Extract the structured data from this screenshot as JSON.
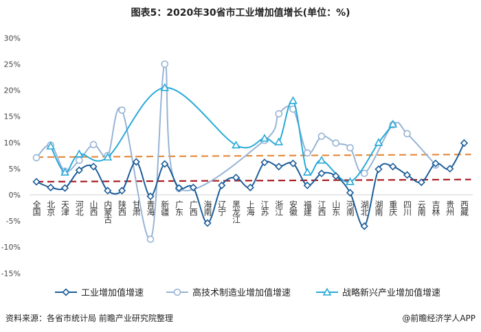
{
  "chart_data": {
    "type": "line",
    "title": "图表5：2020年30省市工业增加值增长(单位：%)",
    "categories": [
      "全国",
      "北京",
      "天津",
      "河北",
      "山西",
      "内蒙古",
      "陕西",
      "甘肃",
      "青海",
      "新疆",
      "广东",
      "广西",
      "海南",
      "辽宁",
      "黑龙江",
      "上海",
      "江苏",
      "浙江",
      "安徽",
      "福建",
      "江西",
      "山东",
      "河南",
      "湖北",
      "湖南",
      "重庆",
      "四川",
      "云南",
      "吉林",
      "贵州",
      "西藏"
    ],
    "ylim": [
      -15,
      30
    ],
    "yticks": [
      "30%",
      "25%",
      "20%",
      "15%",
      "10%",
      "5%",
      "0%",
      "-5%",
      "-10%",
      "-15%"
    ],
    "ytick_values": [
      30,
      25,
      20,
      15,
      10,
      5,
      0,
      -5,
      -10,
      -15
    ],
    "series": [
      {
        "name": "工业增加值增速",
        "color": "#1b5c98",
        "marker": "diamond",
        "values": [
          2.5,
          1.4,
          1.3,
          4.7,
          5.4,
          0.8,
          0.8,
          6.3,
          -0.3,
          5.9,
          1.3,
          1.4,
          -5.4,
          1.8,
          3.3,
          1.4,
          6.2,
          5.4,
          6.0,
          1.8,
          4.1,
          3.6,
          0.4,
          -6.0,
          4.9,
          5.4,
          3.8,
          2.4,
          6.0,
          5.0,
          9.9
        ],
        "trend": [
          2.5,
          2.9
        ],
        "trend_color": "#a8191f"
      },
      {
        "name": "高技术制造业增加值增速",
        "color": "#97b3d5",
        "marker": "circle",
        "values": [
          7.1,
          9.5,
          4.5,
          6.6,
          9.6,
          7.5,
          16.2,
          null,
          -8.5,
          25.0,
          1.2,
          null,
          null,
          null,
          null,
          null,
          10.4,
          15.5,
          16.4,
          8.0,
          11.2,
          9.9,
          9.0,
          4.1,
          null,
          13.4,
          11.7,
          null,
          5.7,
          null,
          null
        ]
      },
      {
        "name": "战略新兴产业增加值增速",
        "color": "#27a9d8",
        "marker": "triangle",
        "values": [
          null,
          9.3,
          4.3,
          7.8,
          null,
          7.2,
          null,
          null,
          null,
          20.5,
          null,
          null,
          null,
          null,
          9.5,
          null,
          10.8,
          10.1,
          18.0,
          4.3,
          6.6,
          null,
          2.5,
          null,
          10.0,
          13.5,
          null,
          null,
          null,
          null,
          null
        ],
        "trend": [
          7.2,
          7.7
        ],
        "trend_color": "#e58a3c"
      }
    ]
  },
  "footer": {
    "source": "资料来源：各省市统计局 前瞻产业研究院整理",
    "brand": "@前瞻经济学人APP"
  },
  "watermark": "前瞻产业研究院"
}
